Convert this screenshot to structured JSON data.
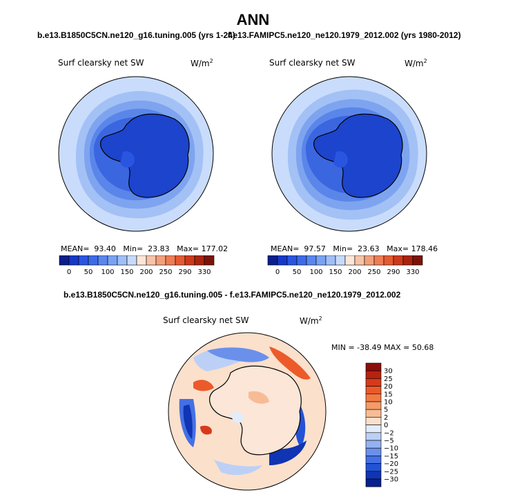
{
  "figure": {
    "title": "ANN",
    "case1_title": "b.e13.B1850C5CN.ne120_g16.tuning.005 (yrs 1-24)",
    "case2_title": "f.e13.FAMIPC5.ne120_ne120.1979_2012.002 (yrs 1980-2012)",
    "diff_title": "b.e13.B1850C5CN.ne120_g16.tuning.005 - f.e13.FAMIPC5.ne120_ne120.1979_2012.002"
  },
  "panels": [
    {
      "variable": "Surf clearsky net SW",
      "units": "W/m",
      "units_exp": "2",
      "stats": {
        "mean_label": "MEAN=",
        "mean": "93.40",
        "min_label": "Min=",
        "min": "23.83",
        "max_label": "Max=",
        "max": "177.02"
      }
    },
    {
      "variable": "Surf clearsky net SW",
      "units": "W/m",
      "units_exp": "2",
      "stats": {
        "mean_label": "MEAN=",
        "mean": "97.57",
        "min_label": "Min=",
        "min": "23.63",
        "max_label": "Max=",
        "max": "178.46"
      }
    }
  ],
  "diff_panel": {
    "variable": "Surf clearsky net SW",
    "units": "W/m",
    "units_exp": "2",
    "stats_text": "MIN = -38.49 MAX = 50.68"
  },
  "colorbars": {
    "abs_labels": [
      "0",
      "50",
      "100",
      "150",
      "200",
      "250",
      "290",
      "330"
    ],
    "abs_colors": [
      "#0a1e8c",
      "#1638c8",
      "#2a55e0",
      "#3d6ae6",
      "#5a86ee",
      "#7aa2f2",
      "#a0bff7",
      "#c8dafb",
      "#fbe6d8",
      "#f7c3a8",
      "#f2a07c",
      "#ee7d55",
      "#e45a32",
      "#cc3a1c",
      "#a8240f",
      "#7a1408"
    ],
    "diff_labels": [
      "30",
      "25",
      "20",
      "15",
      "10",
      "5",
      "2",
      "0",
      "-2",
      "-5",
      "-10",
      "-15",
      "-20",
      "-25",
      "-30"
    ],
    "diff_colors": [
      "#8b0d0a",
      "#b8220e",
      "#d8391a",
      "#ec5a2a",
      "#f27a44",
      "#f59a68",
      "#f7bc96",
      "#fbe0cc",
      "#e2ecfb",
      "#bcd0f6",
      "#94b2f1",
      "#6a90eb",
      "#4470e4",
      "#2452d6",
      "#0f34b4",
      "#08208c"
    ]
  }
}
